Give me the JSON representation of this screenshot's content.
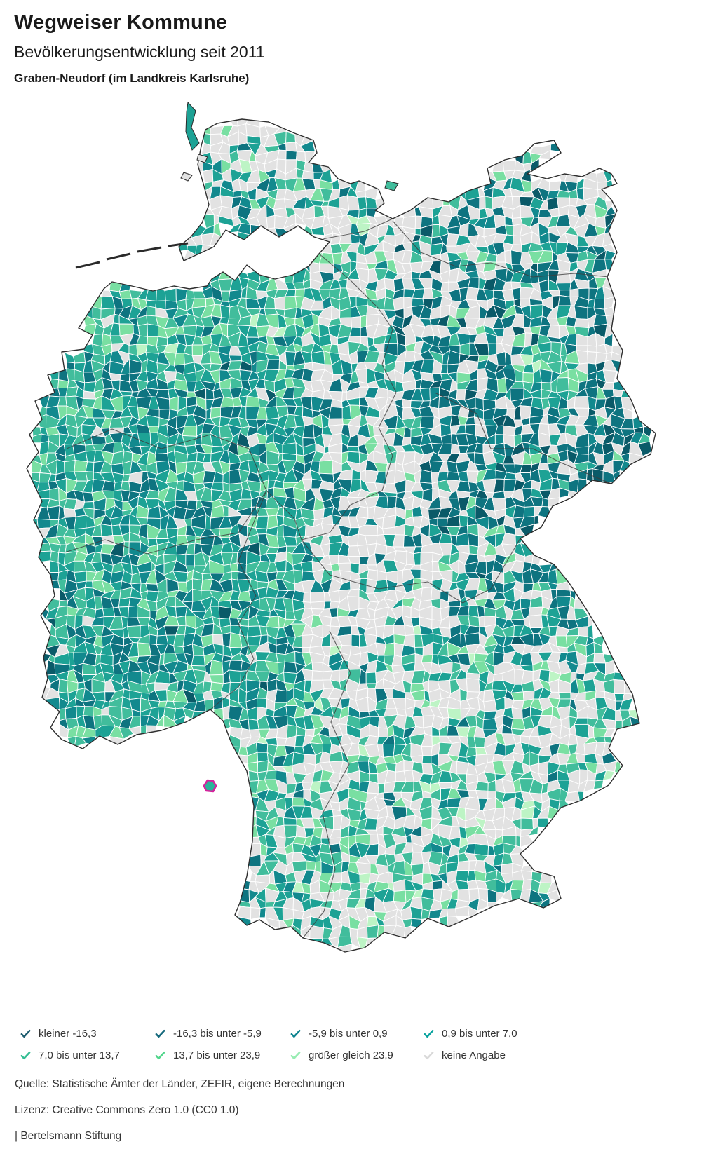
{
  "header": {
    "title": "Wegweiser Kommune",
    "subtitle": "Bevölkerungsentwicklung seit 2011",
    "location": "Graben-Neudorf (im Landkreis Karlsruhe)"
  },
  "map": {
    "description": "choropleth-germany-municipalities",
    "highlight": {
      "label": "Graben-Neudorf",
      "outline_color": "#d6219c",
      "fill": "#2bb39a"
    },
    "fill_palette": {
      "c1": "#0a5a68",
      "c2": "#0e7480",
      "c3": "#12898e",
      "c4": "#1da295",
      "c5": "#41bd9c",
      "c6": "#79dfa2",
      "c7": "#bdf4c5",
      "c8": "#e2e2e2"
    },
    "border_colors": {
      "country": "#2e2e2e",
      "state": "#3d3d3d",
      "municipal": "#ffffff"
    }
  },
  "legend": {
    "items": [
      {
        "label": "kleiner -16,3",
        "color": "#205e70"
      },
      {
        "label": "-16,3 bis unter -5,9",
        "color": "#15697c"
      },
      {
        "label": "-5,9 bis unter 0,9",
        "color": "#0f8490"
      },
      {
        "label": "0,9 bis unter 7,0",
        "color": "#0aa39f"
      },
      {
        "label": "7,0 bis unter 13,7",
        "color": "#32bd92"
      },
      {
        "label": "13,7 bis unter 23,9",
        "color": "#52d68c"
      },
      {
        "label": "größer gleich 23,9",
        "color": "#97ecb2"
      },
      {
        "label": "keine Angabe",
        "color": "#d9d9d9"
      }
    ]
  },
  "footer": {
    "source": "Quelle: Statistische Ämter der Länder, ZEFIR, eigene Berechnungen",
    "license": "Lizenz: Creative Commons Zero 1.0 (CC0 1.0)",
    "attribution": "| Bertelsmann Stiftung"
  }
}
